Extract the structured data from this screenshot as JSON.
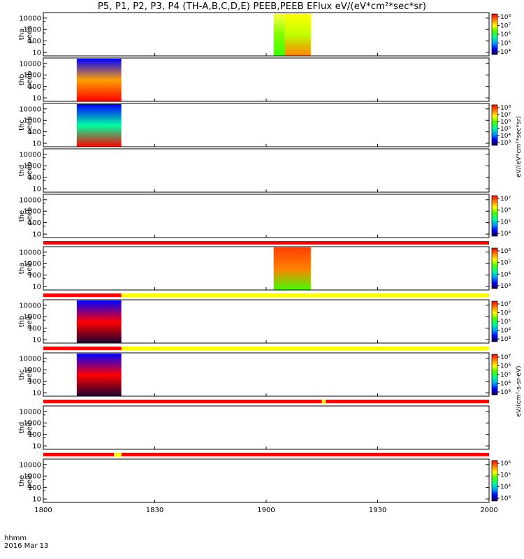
{
  "title": "P5, P1, P2, P3, P4 (TH-A,B,C,D,E) PEEB,PEEB EFlux eV/(eV*cm²*sec*sr)",
  "footer": {
    "line1": "hhmm",
    "line2": "2016 Mar 13"
  },
  "colors": {
    "scale": [
      "#1a0033",
      "#0000ff",
      "#00a0ff",
      "#00ffa0",
      "#40ff00",
      "#ffff00",
      "#ff8000",
      "#ff0000"
    ],
    "mode_bar_red": "#ff0000",
    "mode_bar_yellow": "#ffff00",
    "axis": "#000000"
  },
  "chart_data": {
    "type": "heatmap",
    "x_axis": {
      "label": "",
      "range": [
        "1800",
        "2000"
      ],
      "ticks": [
        "1800",
        "1830",
        "1900",
        "1930",
        "2000"
      ]
    },
    "y_axis_ticks": [
      "10",
      "100",
      "1000",
      "10000"
    ],
    "panels": [
      {
        "id": "tha_peeb",
        "ylabel": [
          "tha",
          "peeb"
        ],
        "scale": "log",
        "ylim": [
          5,
          30000
        ],
        "blocks": [
          {
            "start": "1902",
            "end": "1905",
            "low": "#40ff00",
            "mid": "#80ff00",
            "high": "#ffff40"
          },
          {
            "start": "1905",
            "end": "1912",
            "low": "#ff8000",
            "mid": "#c0ff00",
            "high": "#ffff00"
          }
        ],
        "colorbar": {
          "ticks": [
            "10⁸",
            "10⁷",
            "10⁶",
            "10⁵",
            "10⁴"
          ]
        }
      },
      {
        "id": "thb_peeb",
        "ylabel": [
          "thb",
          "peeb"
        ],
        "scale": "log",
        "ylim": [
          5,
          30000
        ],
        "blocks": [
          {
            "start": "1809",
            "end": "1821",
            "low": "#ff0000",
            "mid": "#ffa000",
            "high": "#0000ff"
          }
        ],
        "colorbar": null
      },
      {
        "id": "thc_peeb",
        "ylabel": [
          "thc",
          "peeb"
        ],
        "scale": "log",
        "ylim": [
          5,
          30000
        ],
        "blocks": [
          {
            "start": "1809",
            "end": "1821",
            "low": "#ff0000",
            "mid": "#00ffa0",
            "high": "#0000ff"
          }
        ],
        "colorbar": {
          "ticks": [
            "10⁸",
            "10⁷",
            "10⁶",
            "10⁵",
            "10⁴",
            "10³"
          ]
        }
      },
      {
        "id": "thd_peeb",
        "ylabel": [
          "thd",
          "peeb"
        ],
        "scale": "log",
        "ylim": [
          5,
          30000
        ],
        "blocks": [],
        "colorbar": null
      },
      {
        "id": "the_peeb",
        "ylabel": [
          "the",
          "peeb"
        ],
        "scale": "log",
        "ylim": [
          5,
          30000
        ],
        "blocks": [],
        "colorbar": {
          "ticks": [
            "10⁷",
            "10⁶",
            "10⁵",
            "10⁴"
          ]
        }
      },
      {
        "id": "tha_peib",
        "ylabel": [
          "tha",
          "peib"
        ],
        "scale": "log",
        "ylim": [
          5,
          30000
        ],
        "blocks": [
          {
            "start": "1902",
            "end": "1912",
            "low": "#40ff00",
            "mid": "#ff8000",
            "high": "#ff4000"
          }
        ],
        "colorbar": {
          "ticks": [
            "10⁶",
            "10⁵",
            "10⁴",
            "10³"
          ]
        }
      },
      {
        "id": "thb_peib",
        "ylabel": [
          "thb",
          "peib"
        ],
        "scale": "log",
        "ylim": [
          5,
          30000
        ],
        "blocks": [
          {
            "start": "1809",
            "end": "1821",
            "low": "#1a0033",
            "mid": "#ff0000",
            "high": "#0000ff"
          }
        ],
        "colorbar": {
          "ticks": [
            "10⁷",
            "10⁶",
            "10⁵",
            "10⁴",
            "10³"
          ]
        }
      },
      {
        "id": "thc_peib",
        "ylabel": [
          "thc",
          "peib"
        ],
        "scale": "log",
        "ylim": [
          5,
          30000
        ],
        "blocks": [
          {
            "start": "1809",
            "end": "1821",
            "low": "#1a0033",
            "mid": "#ff0000",
            "high": "#0000ff"
          }
        ],
        "colorbar": {
          "ticks": [
            "10⁷",
            "10⁶",
            "10⁵",
            "10⁴",
            "10³"
          ]
        }
      },
      {
        "id": "thd_peib",
        "ylabel": [
          "thd",
          "peib"
        ],
        "scale": "log",
        "ylim": [
          5,
          30000
        ],
        "blocks": [],
        "colorbar": null
      },
      {
        "id": "the_peib",
        "ylabel": [
          "the",
          "peib"
        ],
        "scale": "log",
        "ylim": [
          5,
          30000
        ],
        "blocks": [],
        "colorbar": {
          "ticks": [
            "10⁶",
            "10⁵",
            "10⁴",
            "10³"
          ]
        }
      }
    ],
    "mode_bars": [
      {
        "after_panel": 5,
        "segments": [
          {
            "start": "1800",
            "end": "2000",
            "color": "red"
          }
        ]
      },
      {
        "after_panel": 6,
        "segments": [
          {
            "start": "1800",
            "end": "1821",
            "color": "red"
          },
          {
            "start": "1821",
            "end": "2000",
            "color": "yellow"
          }
        ]
      },
      {
        "after_panel": 7,
        "segments": [
          {
            "start": "1800",
            "end": "1821",
            "color": "red"
          },
          {
            "start": "1821",
            "end": "2000",
            "color": "yellow"
          }
        ]
      },
      {
        "after_panel": 8,
        "segments": [
          {
            "start": "1800",
            "end": "1915",
            "color": "red"
          },
          {
            "start": "1915",
            "end": "1916",
            "color": "yellow"
          },
          {
            "start": "1916",
            "end": "2000",
            "color": "red"
          }
        ]
      },
      {
        "after_panel": 9,
        "segments": [
          {
            "start": "1800",
            "end": "1819",
            "color": "red"
          },
          {
            "start": "1819",
            "end": "1821",
            "color": "yellow"
          },
          {
            "start": "1821",
            "end": "2000",
            "color": "red"
          }
        ]
      }
    ],
    "colorbar_labels": [
      "eV/(eV*cm²*sec*sr)",
      "eV/(cm²-s-sr-eV)"
    ]
  }
}
